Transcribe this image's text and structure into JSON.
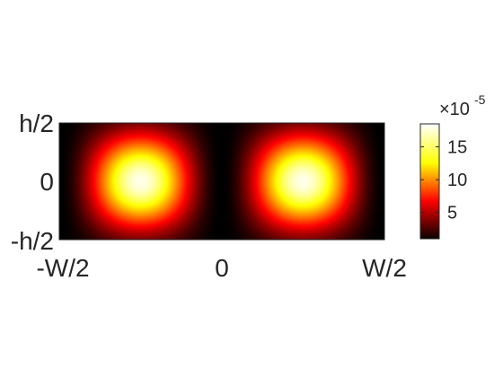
{
  "chart_data": {
    "type": "heatmap",
    "colormap": "hot",
    "field": {
      "description_of_pattern": "two lobes, each sin^2 across x and cos-like across y",
      "x_range": [
        -0.5,
        0.5
      ],
      "y_range": [
        -0.5,
        0.5
      ],
      "value_range": [
        1,
        18.5
      ],
      "value_unit_exponent": "-5"
    },
    "x_ticks": [
      "-W/2",
      "0",
      "W/2"
    ],
    "y_ticks": [
      "h/2",
      "0",
      "-h/2"
    ],
    "colorbar": {
      "exponent_base": "×10",
      "exponent": "-5",
      "ticks": [
        "15",
        "10",
        "5"
      ],
      "tick_values": [
        15,
        10,
        5
      ]
    }
  }
}
